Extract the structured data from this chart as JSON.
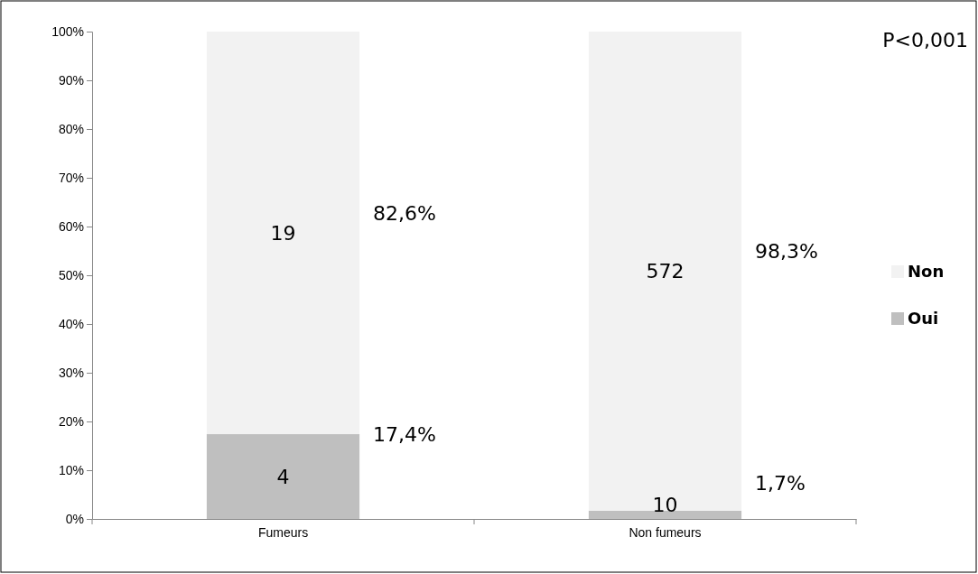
{
  "chart_data": {
    "type": "bar",
    "stacked": true,
    "categories": [
      "Fumeurs",
      "Non fumeurs"
    ],
    "series": [
      {
        "name": "Oui",
        "color": "#bfbfbf",
        "values": [
          17.4,
          1.7
        ]
      },
      {
        "name": "Non",
        "color": "#f2f2f2",
        "values": [
          82.6,
          98.3
        ]
      }
    ],
    "ylim": [
      0,
      100
    ],
    "yticks": [
      {
        "value": 0,
        "label": "0%"
      },
      {
        "value": 10,
        "label": "10%"
      },
      {
        "value": 20,
        "label": "20%"
      },
      {
        "value": 30,
        "label": "30%"
      },
      {
        "value": 40,
        "label": "40%"
      },
      {
        "value": 50,
        "label": "50%"
      },
      {
        "value": 60,
        "label": "60%"
      },
      {
        "value": 70,
        "label": "70%"
      },
      {
        "value": 80,
        "label": "80%"
      },
      {
        "value": 90,
        "label": "90%"
      },
      {
        "value": 100,
        "label": "100%"
      }
    ],
    "legend": "right",
    "annotations": [
      "4",
      "19",
      "10",
      "572",
      "17,4%",
      "82,6%",
      "1,7%",
      "98,3%",
      "P<0,001"
    ]
  }
}
